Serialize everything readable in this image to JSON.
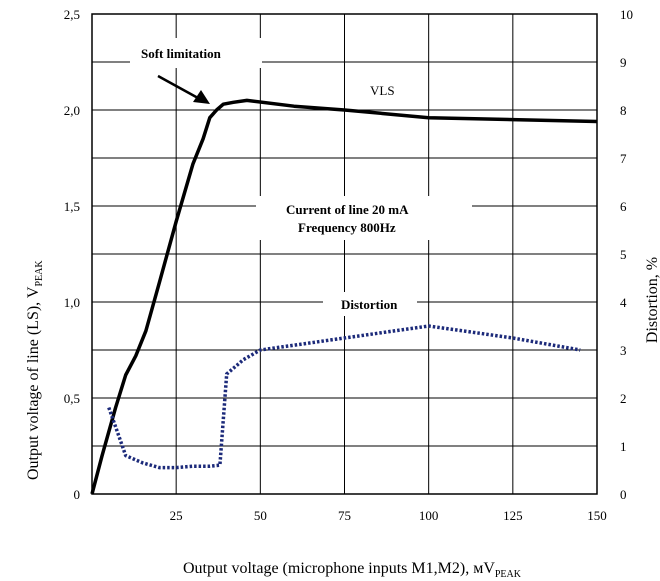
{
  "chart_data": {
    "type": "line",
    "xlabel": "Output voltage (microphone inputs M1,M2), мV",
    "xlabel_sub": "PEAK",
    "ylabel_left": "Output voltage of line (LS),  V",
    "ylabel_left_sub": "PEAK",
    "ylabel_right": "Distortion, %",
    "x_ticks": [
      "25",
      "50",
      "75",
      "100",
      "125",
      "150"
    ],
    "y_left_ticks": [
      "0",
      "0,5",
      "1,0",
      "1,5",
      "2,0",
      "2,5"
    ],
    "y_right_ticks": [
      "0",
      "1",
      "2",
      "3",
      "4",
      "5",
      "6",
      "7",
      "8",
      "9",
      "10"
    ],
    "xlim": [
      0,
      150
    ],
    "ylim_left": [
      0,
      2.5
    ],
    "ylim_right": [
      0,
      10
    ],
    "grid": true,
    "annotations": {
      "soft_limitation": "Soft limitation",
      "vls": "VLS",
      "conditions_line1": "Current of line  20 mA",
      "conditions_line2": "Frequency  800Hz",
      "distortion": "Distortion"
    },
    "series": [
      {
        "name": "VLS",
        "axis": "left",
        "style": "solid",
        "color": "#000000",
        "x": [
          0,
          3,
          7,
          10,
          13,
          16,
          20,
          25,
          30,
          33,
          35,
          37,
          39,
          42,
          46,
          60,
          75,
          100,
          125,
          150
        ],
        "y": [
          0.0,
          0.2,
          0.45,
          0.62,
          0.72,
          0.85,
          1.1,
          1.42,
          1.72,
          1.85,
          1.96,
          2.0,
          2.03,
          2.04,
          2.05,
          2.02,
          2.0,
          1.96,
          1.95,
          1.94
        ]
      },
      {
        "name": "Distortion",
        "axis": "right",
        "style": "dotted",
        "color": "#1c2a7a",
        "x": [
          5,
          7,
          10,
          15,
          20,
          25,
          30,
          35,
          38,
          40,
          45,
          50,
          75,
          100,
          125,
          145
        ],
        "y": [
          1.8,
          1.4,
          0.8,
          0.65,
          0.55,
          0.55,
          0.58,
          0.58,
          0.6,
          2.5,
          2.8,
          3.0,
          3.25,
          3.5,
          3.25,
          3.0
        ]
      }
    ]
  }
}
